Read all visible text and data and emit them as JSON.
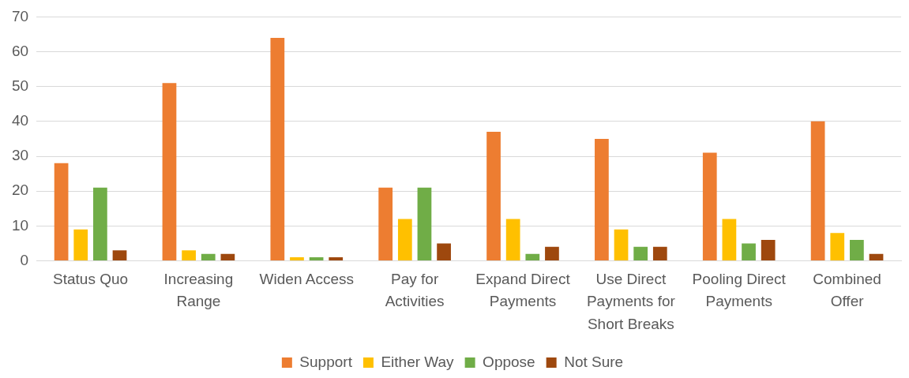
{
  "chart_data": {
    "type": "bar",
    "categories": [
      "Status Quo",
      "Increasing Range",
      "Widen Access",
      "Pay for Activities",
      "Expand Direct Payments",
      "Use Direct Payments for Short Breaks",
      "Pooling Direct Payments",
      "Combined Offer"
    ],
    "series": [
      {
        "name": "Support",
        "color": "#ed7d31",
        "values": [
          28,
          51,
          64,
          21,
          37,
          35,
          31,
          40
        ]
      },
      {
        "name": "Either Way",
        "color": "#ffc000",
        "values": [
          9,
          3,
          1,
          12,
          12,
          9,
          12,
          8
        ]
      },
      {
        "name": "Oppose",
        "color": "#70ad47",
        "values": [
          21,
          2,
          1,
          21,
          2,
          4,
          5,
          6
        ]
      },
      {
        "name": "Not Sure",
        "color": "#9e480e",
        "values": [
          3,
          2,
          1,
          5,
          4,
          4,
          6,
          2
        ]
      }
    ],
    "ylim": [
      0,
      70
    ],
    "yticks": [
      0,
      10,
      20,
      30,
      40,
      50,
      60,
      70
    ],
    "grid": "y",
    "legend": "bottom"
  }
}
